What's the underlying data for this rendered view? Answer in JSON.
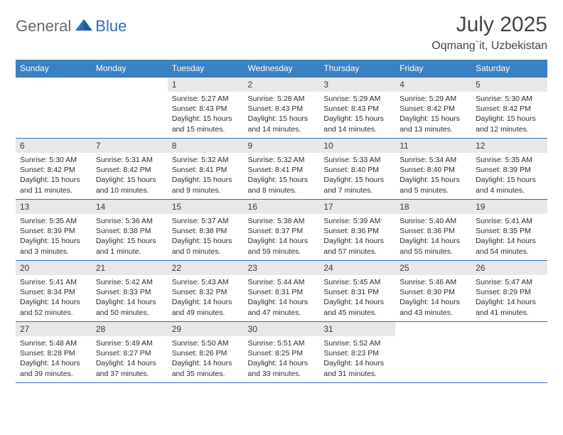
{
  "logo": {
    "general": "General",
    "blue": "Blue"
  },
  "title": "July 2025",
  "location": "Oqmang`it, Uzbekistan",
  "colors": {
    "header_bg": "#3a81c4",
    "border": "#2f6eb5",
    "daynum_bg": "#e8e8e8",
    "text": "#2c2c2c",
    "title_text": "#454545"
  },
  "daysOfWeek": [
    "Sunday",
    "Monday",
    "Tuesday",
    "Wednesday",
    "Thursday",
    "Friday",
    "Saturday"
  ],
  "weeks": [
    [
      null,
      null,
      {
        "n": "1",
        "sr": "Sunrise: 5:27 AM",
        "ss": "Sunset: 8:43 PM",
        "dl": "Daylight: 15 hours and 15 minutes."
      },
      {
        "n": "2",
        "sr": "Sunrise: 5:28 AM",
        "ss": "Sunset: 8:43 PM",
        "dl": "Daylight: 15 hours and 14 minutes."
      },
      {
        "n": "3",
        "sr": "Sunrise: 5:29 AM",
        "ss": "Sunset: 8:43 PM",
        "dl": "Daylight: 15 hours and 14 minutes."
      },
      {
        "n": "4",
        "sr": "Sunrise: 5:29 AM",
        "ss": "Sunset: 8:42 PM",
        "dl": "Daylight: 15 hours and 13 minutes."
      },
      {
        "n": "5",
        "sr": "Sunrise: 5:30 AM",
        "ss": "Sunset: 8:42 PM",
        "dl": "Daylight: 15 hours and 12 minutes."
      }
    ],
    [
      {
        "n": "6",
        "sr": "Sunrise: 5:30 AM",
        "ss": "Sunset: 8:42 PM",
        "dl": "Daylight: 15 hours and 11 minutes."
      },
      {
        "n": "7",
        "sr": "Sunrise: 5:31 AM",
        "ss": "Sunset: 8:42 PM",
        "dl": "Daylight: 15 hours and 10 minutes."
      },
      {
        "n": "8",
        "sr": "Sunrise: 5:32 AM",
        "ss": "Sunset: 8:41 PM",
        "dl": "Daylight: 15 hours and 9 minutes."
      },
      {
        "n": "9",
        "sr": "Sunrise: 5:32 AM",
        "ss": "Sunset: 8:41 PM",
        "dl": "Daylight: 15 hours and 8 minutes."
      },
      {
        "n": "10",
        "sr": "Sunrise: 5:33 AM",
        "ss": "Sunset: 8:40 PM",
        "dl": "Daylight: 15 hours and 7 minutes."
      },
      {
        "n": "11",
        "sr": "Sunrise: 5:34 AM",
        "ss": "Sunset: 8:40 PM",
        "dl": "Daylight: 15 hours and 5 minutes."
      },
      {
        "n": "12",
        "sr": "Sunrise: 5:35 AM",
        "ss": "Sunset: 8:39 PM",
        "dl": "Daylight: 15 hours and 4 minutes."
      }
    ],
    [
      {
        "n": "13",
        "sr": "Sunrise: 5:35 AM",
        "ss": "Sunset: 8:39 PM",
        "dl": "Daylight: 15 hours and 3 minutes."
      },
      {
        "n": "14",
        "sr": "Sunrise: 5:36 AM",
        "ss": "Sunset: 8:38 PM",
        "dl": "Daylight: 15 hours and 1 minute."
      },
      {
        "n": "15",
        "sr": "Sunrise: 5:37 AM",
        "ss": "Sunset: 8:38 PM",
        "dl": "Daylight: 15 hours and 0 minutes."
      },
      {
        "n": "16",
        "sr": "Sunrise: 5:38 AM",
        "ss": "Sunset: 8:37 PM",
        "dl": "Daylight: 14 hours and 59 minutes."
      },
      {
        "n": "17",
        "sr": "Sunrise: 5:39 AM",
        "ss": "Sunset: 8:36 PM",
        "dl": "Daylight: 14 hours and 57 minutes."
      },
      {
        "n": "18",
        "sr": "Sunrise: 5:40 AM",
        "ss": "Sunset: 8:36 PM",
        "dl": "Daylight: 14 hours and 55 minutes."
      },
      {
        "n": "19",
        "sr": "Sunrise: 5:41 AM",
        "ss": "Sunset: 8:35 PM",
        "dl": "Daylight: 14 hours and 54 minutes."
      }
    ],
    [
      {
        "n": "20",
        "sr": "Sunrise: 5:41 AM",
        "ss": "Sunset: 8:34 PM",
        "dl": "Daylight: 14 hours and 52 minutes."
      },
      {
        "n": "21",
        "sr": "Sunrise: 5:42 AM",
        "ss": "Sunset: 8:33 PM",
        "dl": "Daylight: 14 hours and 50 minutes."
      },
      {
        "n": "22",
        "sr": "Sunrise: 5:43 AM",
        "ss": "Sunset: 8:32 PM",
        "dl": "Daylight: 14 hours and 49 minutes."
      },
      {
        "n": "23",
        "sr": "Sunrise: 5:44 AM",
        "ss": "Sunset: 8:31 PM",
        "dl": "Daylight: 14 hours and 47 minutes."
      },
      {
        "n": "24",
        "sr": "Sunrise: 5:45 AM",
        "ss": "Sunset: 8:31 PM",
        "dl": "Daylight: 14 hours and 45 minutes."
      },
      {
        "n": "25",
        "sr": "Sunrise: 5:46 AM",
        "ss": "Sunset: 8:30 PM",
        "dl": "Daylight: 14 hours and 43 minutes."
      },
      {
        "n": "26",
        "sr": "Sunrise: 5:47 AM",
        "ss": "Sunset: 8:29 PM",
        "dl": "Daylight: 14 hours and 41 minutes."
      }
    ],
    [
      {
        "n": "27",
        "sr": "Sunrise: 5:48 AM",
        "ss": "Sunset: 8:28 PM",
        "dl": "Daylight: 14 hours and 39 minutes."
      },
      {
        "n": "28",
        "sr": "Sunrise: 5:49 AM",
        "ss": "Sunset: 8:27 PM",
        "dl": "Daylight: 14 hours and 37 minutes."
      },
      {
        "n": "29",
        "sr": "Sunrise: 5:50 AM",
        "ss": "Sunset: 8:26 PM",
        "dl": "Daylight: 14 hours and 35 minutes."
      },
      {
        "n": "30",
        "sr": "Sunrise: 5:51 AM",
        "ss": "Sunset: 8:25 PM",
        "dl": "Daylight: 14 hours and 33 minutes."
      },
      {
        "n": "31",
        "sr": "Sunrise: 5:52 AM",
        "ss": "Sunset: 8:23 PM",
        "dl": "Daylight: 14 hours and 31 minutes."
      },
      null,
      null
    ]
  ]
}
